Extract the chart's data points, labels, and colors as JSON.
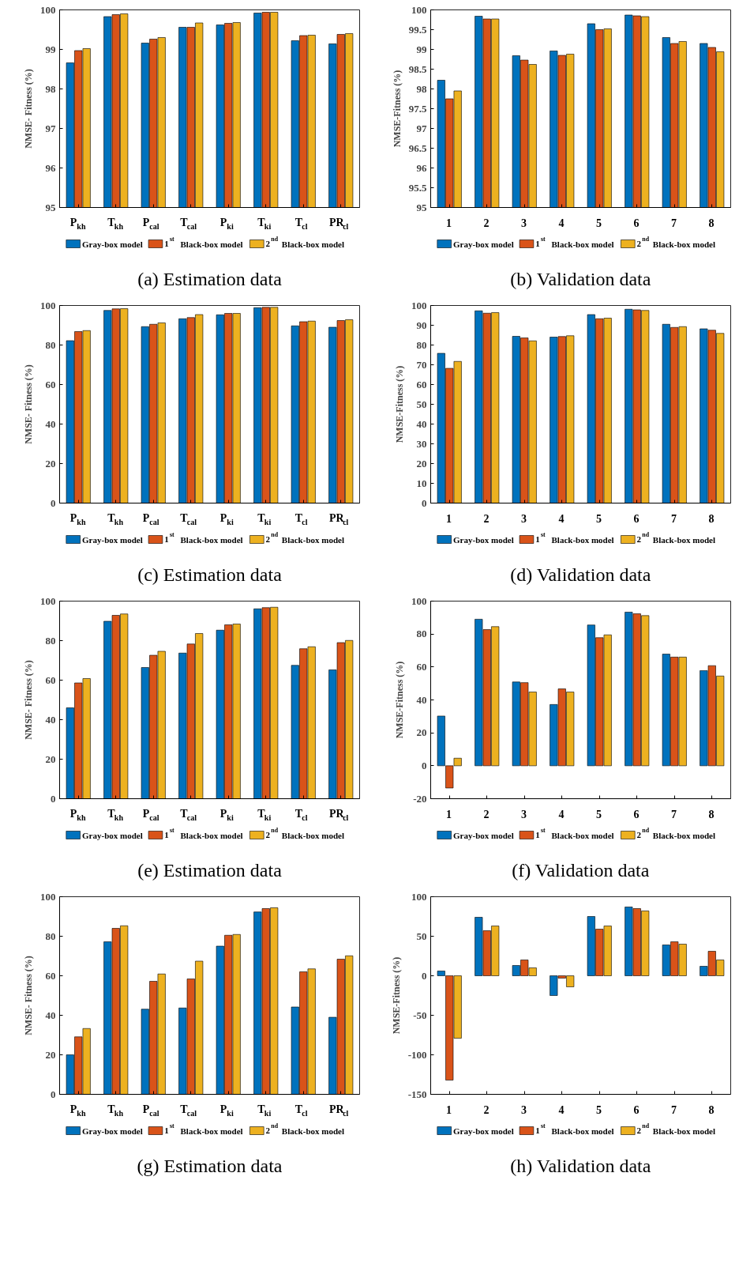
{
  "chart_data": [
    {
      "type": "bar",
      "title": "(a) Estimation data",
      "ylabel": "NMSE- Fitness (%)",
      "categories": [
        "P$_{kh}$",
        "T$_{kh}$",
        "P$_{cal}$",
        "T$_{cal}$",
        "P$_{ki}$",
        "T$_{ki}$",
        "T$_{cl}$",
        "PR$_{cl}$"
      ],
      "ylim": [
        95,
        100
      ],
      "yticks": [
        95,
        96,
        97,
        98,
        99,
        100
      ],
      "legend": "bottom",
      "grid": false,
      "series": [
        {
          "name": "Gray-box model",
          "color": "#0072bd",
          "values": [
            98.66,
            99.83,
            99.16,
            99.56,
            99.62,
            99.92,
            99.22,
            99.14
          ]
        },
        {
          "name": "1$^{st}$ Black-box model",
          "color": "#d95319",
          "values": [
            98.97,
            99.88,
            99.26,
            99.56,
            99.66,
            99.94,
            99.35,
            99.38
          ]
        },
        {
          "name": "2$^{nd}$ Black-box model",
          "color": "#edb120",
          "values": [
            99.02,
            99.9,
            99.3,
            99.67,
            99.68,
            99.94,
            99.36,
            99.4
          ]
        }
      ]
    },
    {
      "type": "bar",
      "title": "(b) Validation data",
      "ylabel": "NMSE-Fitness (%)",
      "categories": [
        "1",
        "2",
        "3",
        "4",
        "5",
        "6",
        "7",
        "8"
      ],
      "ylim": [
        95,
        100
      ],
      "yticks": [
        95,
        95.5,
        96,
        96.5,
        97,
        97.5,
        98,
        98.5,
        99,
        99.5,
        100
      ],
      "legend": "bottom",
      "grid": false,
      "series": [
        {
          "name": "Gray-box model",
          "color": "#0072bd",
          "values": [
            98.22,
            99.84,
            98.84,
            98.96,
            99.65,
            99.87,
            99.3,
            99.15
          ]
        },
        {
          "name": "1$^{st}$ Black-box model",
          "color": "#d95319",
          "values": [
            97.75,
            99.77,
            98.73,
            98.85,
            99.5,
            99.85,
            99.15,
            99.05
          ]
        },
        {
          "name": "2$^{nd}$ Black-box model",
          "color": "#edb120",
          "values": [
            97.95,
            99.77,
            98.62,
            98.88,
            99.52,
            99.83,
            99.2,
            98.94
          ]
        }
      ]
    },
    {
      "type": "bar",
      "title": "(c) Estimation data",
      "ylabel": "NMSE- Fitness (%)",
      "categories": [
        "P$_{kh}$",
        "T$_{kh}$",
        "P$_{cal}$",
        "T$_{cal}$",
        "P$_{ki}$",
        "T$_{ki}$",
        "T$_{cl}$",
        "PR$_{cl}$"
      ],
      "ylim": [
        0,
        100
      ],
      "yticks": [
        0,
        20,
        40,
        60,
        80,
        100
      ],
      "legend": "bottom",
      "grid": false,
      "series": [
        {
          "name": "Gray-box model",
          "color": "#0072bd",
          "values": [
            82.2,
            97.5,
            89.3,
            93.3,
            95.3,
            98.9,
            89.7,
            89.0
          ]
        },
        {
          "name": "1$^{st}$ Black-box model",
          "color": "#d95319",
          "values": [
            86.8,
            98.3,
            90.5,
            93.9,
            96.0,
            99.1,
            91.8,
            92.4
          ]
        },
        {
          "name": "2$^{nd}$ Black-box model",
          "color": "#edb120",
          "values": [
            87.3,
            98.4,
            91.2,
            95.4,
            96.0,
            99.1,
            92.1,
            92.8
          ]
        }
      ]
    },
    {
      "type": "bar",
      "title": "(d) Validation data",
      "ylabel": "NMSE-Fitness (%)",
      "categories": [
        "1",
        "2",
        "3",
        "4",
        "5",
        "6",
        "7",
        "8"
      ],
      "ylim": [
        0,
        100
      ],
      "yticks": [
        0,
        10,
        20,
        30,
        40,
        50,
        60,
        70,
        80,
        90,
        100
      ],
      "legend": "bottom",
      "grid": false,
      "series": [
        {
          "name": "Gray-box model",
          "color": "#0072bd",
          "values": [
            75.8,
            97.3,
            84.4,
            84.0,
            95.4,
            98.1,
            90.5,
            88.2
          ]
        },
        {
          "name": "1$^{st}$ Black-box model",
          "color": "#d95319",
          "values": [
            68.2,
            96.1,
            83.6,
            84.3,
            93.3,
            97.8,
            88.9,
            87.5
          ]
        },
        {
          "name": "2$^{nd}$ Black-box model",
          "color": "#edb120",
          "values": [
            71.7,
            96.4,
            82.1,
            84.7,
            93.6,
            97.5,
            89.3,
            85.9
          ]
        }
      ]
    },
    {
      "type": "bar",
      "title": "(e) Estimation data",
      "ylabel": "NMSE- Fitness (%)",
      "categories": [
        "P$_{kh}$",
        "T$_{kh}$",
        "P$_{cal}$",
        "T$_{cal}$",
        "P$_{ki}$",
        "T$_{ki}$",
        "T$_{cl}$",
        "PR$_{cl}$"
      ],
      "ylim": [
        0,
        100
      ],
      "yticks": [
        0,
        20,
        40,
        60,
        80,
        100
      ],
      "legend": "bottom",
      "grid": false,
      "series": [
        {
          "name": "Gray-box model",
          "color": "#0072bd",
          "values": [
            46.0,
            89.8,
            66.4,
            73.7,
            85.3,
            96.1,
            67.5,
            65.2
          ]
        },
        {
          "name": "1$^{st}$ Black-box model",
          "color": "#d95319",
          "values": [
            58.6,
            92.8,
            72.6,
            78.3,
            88.0,
            96.7,
            75.9,
            79.0
          ]
        },
        {
          "name": "2$^{nd}$ Black-box model",
          "color": "#edb120",
          "values": [
            60.8,
            93.5,
            74.6,
            83.6,
            88.4,
            96.9,
            76.9,
            80.1
          ]
        }
      ]
    },
    {
      "type": "bar",
      "title": "(f) Validation data",
      "ylabel": "NMSE-Fitness (%)",
      "categories": [
        "1",
        "2",
        "3",
        "4",
        "5",
        "6",
        "7",
        "8"
      ],
      "ylim": [
        -20,
        100
      ],
      "yticks": [
        -20,
        0,
        20,
        40,
        60,
        80,
        100
      ],
      "legend": "bottom",
      "grid": false,
      "series": [
        {
          "name": "Gray-box model",
          "color": "#0072bd",
          "values": [
            30.2,
            89.0,
            50.9,
            37.2,
            85.5,
            93.3,
            67.8,
            57.8
          ]
        },
        {
          "name": "1$^{st}$ Black-box model",
          "color": "#d95319",
          "values": [
            -13.5,
            82.7,
            50.5,
            46.7,
            77.8,
            92.3,
            66.0,
            60.8
          ]
        },
        {
          "name": "2$^{nd}$ Black-box model",
          "color": "#edb120",
          "values": [
            4.6,
            84.5,
            44.8,
            44.8,
            79.5,
            91.2,
            66.0,
            54.5
          ]
        }
      ]
    },
    {
      "type": "bar",
      "title": "(g) Estimation data",
      "ylabel": "NMSE- Fitness (%)",
      "categories": [
        "P$_{kh}$",
        "T$_{kh}$",
        "P$_{cal}$",
        "T$_{cal}$",
        "P$_{ki}$",
        "T$_{ki}$",
        "T$_{cl}$",
        "PR$_{cl}$"
      ],
      "ylim": [
        0,
        100
      ],
      "yticks": [
        0,
        20,
        40,
        60,
        80,
        100
      ],
      "legend": "bottom",
      "grid": false,
      "series": [
        {
          "name": "Gray-box model",
          "color": "#0072bd",
          "values": [
            20.0,
            77.2,
            43.1,
            43.7,
            75.0,
            92.3,
            44.2,
            39.0
          ]
        },
        {
          "name": "1$^{st}$ Black-box model",
          "color": "#d95319",
          "values": [
            29.1,
            84.0,
            57.2,
            58.4,
            80.5,
            94.0,
            62.0,
            68.4
          ]
        },
        {
          "name": "2$^{nd}$ Black-box model",
          "color": "#edb120",
          "values": [
            33.3,
            85.3,
            60.9,
            67.4,
            80.9,
            94.4,
            63.5,
            70.1
          ]
        }
      ]
    },
    {
      "type": "bar",
      "title": "(h) Validation data",
      "ylabel": "NMSE-Fitness (%)",
      "categories": [
        "1",
        "2",
        "3",
        "4",
        "5",
        "6",
        "7",
        "8"
      ],
      "ylim": [
        -150,
        100
      ],
      "yticks": [
        -150,
        -100,
        -50,
        0,
        50,
        100
      ],
      "legend": "bottom",
      "grid": false,
      "series": [
        {
          "name": "Gray-box model",
          "color": "#0072bd",
          "values": [
            6,
            74,
            13,
            -25,
            75,
            87,
            39,
            12
          ]
        },
        {
          "name": "1$^{st}$ Black-box model",
          "color": "#d95319",
          "values": [
            -132,
            57,
            20,
            -3,
            59,
            85,
            43,
            31
          ]
        },
        {
          "name": "2$^{nd}$ Black-box model",
          "color": "#edb120",
          "values": [
            -79,
            63,
            10,
            -14,
            63,
            82,
            40,
            20
          ]
        }
      ]
    }
  ]
}
